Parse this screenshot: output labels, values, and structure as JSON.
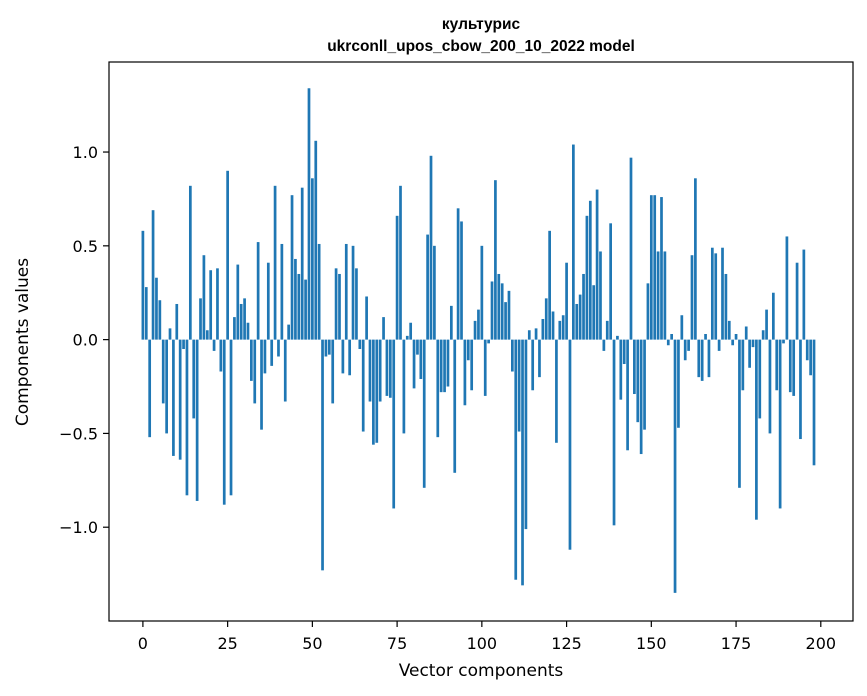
{
  "chart_data": {
    "type": "bar",
    "title_line1": "культурис",
    "title_line2": "ukrconll_upos_cbow_200_10_2022 model",
    "xlabel": "Vector components",
    "ylabel": "Components values",
    "xlim": [
      -10,
      209.5
    ],
    "ylim": [
      -1.5,
      1.48
    ],
    "xticks": [
      0,
      25,
      50,
      75,
      100,
      125,
      150,
      175,
      200
    ],
    "xtick_labels": [
      "0",
      "25",
      "50",
      "75",
      "100",
      "125",
      "150",
      "175",
      "200"
    ],
    "yticks": [
      -1.0,
      -0.5,
      0.0,
      0.5,
      1.0
    ],
    "ytick_labels": [
      "−1.0",
      "−0.5",
      "0.0",
      "0.5",
      "1.0"
    ],
    "bar_color": "#1f77b4",
    "values": [
      0.58,
      0.28,
      -0.52,
      0.69,
      0.33,
      0.21,
      -0.34,
      -0.5,
      0.06,
      -0.62,
      0.19,
      -0.64,
      -0.05,
      -0.83,
      0.82,
      -0.42,
      -0.86,
      0.22,
      0.45,
      0.05,
      0.37,
      -0.06,
      0.38,
      -0.17,
      -0.88,
      0.9,
      -0.83,
      0.12,
      0.4,
      0.19,
      0.22,
      0.09,
      -0.22,
      -0.34,
      0.52,
      -0.48,
      -0.18,
      0.41,
      -0.14,
      0.82,
      -0.09,
      0.51,
      -0.33,
      0.08,
      0.77,
      0.43,
      0.35,
      0.81,
      0.32,
      1.34,
      0.86,
      1.06,
      0.51,
      -1.23,
      -0.09,
      -0.08,
      -0.34,
      0.38,
      0.35,
      -0.18,
      0.51,
      -0.19,
      0.5,
      0.38,
      -0.05,
      -0.49,
      0.23,
      -0.33,
      -0.56,
      -0.55,
      -0.33,
      0.12,
      -0.3,
      -0.31,
      -0.9,
      0.66,
      0.82,
      -0.5,
      0.02,
      0.09,
      -0.26,
      -0.08,
      -0.21,
      -0.79,
      0.56,
      0.98,
      0.5,
      -0.52,
      -0.28,
      -0.28,
      -0.25,
      0.18,
      -0.71,
      0.7,
      0.63,
      -0.35,
      -0.11,
      -0.27,
      0.1,
      0.16,
      0.5,
      -0.3,
      -0.02,
      0.31,
      0.85,
      0.35,
      0.3,
      0.2,
      0.26,
      -0.17,
      -1.28,
      -0.49,
      -1.31,
      -1.01,
      0.05,
      -0.27,
      0.06,
      -0.2,
      0.11,
      0.22,
      0.58,
      0.15,
      -0.55,
      0.1,
      0.13,
      0.41,
      -1.12,
      1.04,
      0.19,
      0.24,
      0.35,
      0.66,
      0.74,
      0.29,
      0.8,
      0.47,
      -0.06,
      0.1,
      0.62,
      -0.99,
      0.02,
      -0.32,
      -0.13,
      -0.59,
      0.97,
      -0.29,
      -0.44,
      -0.61,
      -0.48,
      0.3,
      0.77,
      0.77,
      0.47,
      0.76,
      0.47,
      -0.03,
      0.03,
      -1.35,
      -0.47,
      0.13,
      -0.11,
      -0.06,
      0.45,
      0.86,
      -0.2,
      -0.22,
      0.03,
      -0.2,
      0.49,
      0.46,
      -0.06,
      0.49,
      0.35,
      0.1,
      -0.03,
      0.03,
      -0.79,
      -0.27,
      0.07,
      -0.15,
      -0.04,
      -0.96,
      -0.42,
      0.05,
      0.16,
      -0.5,
      0.25,
      -0.27,
      -0.9,
      -0.02,
      0.55,
      -0.28,
      -0.3,
      0.41,
      -0.53,
      0.48,
      -0.11,
      -0.19,
      -0.67
    ]
  }
}
